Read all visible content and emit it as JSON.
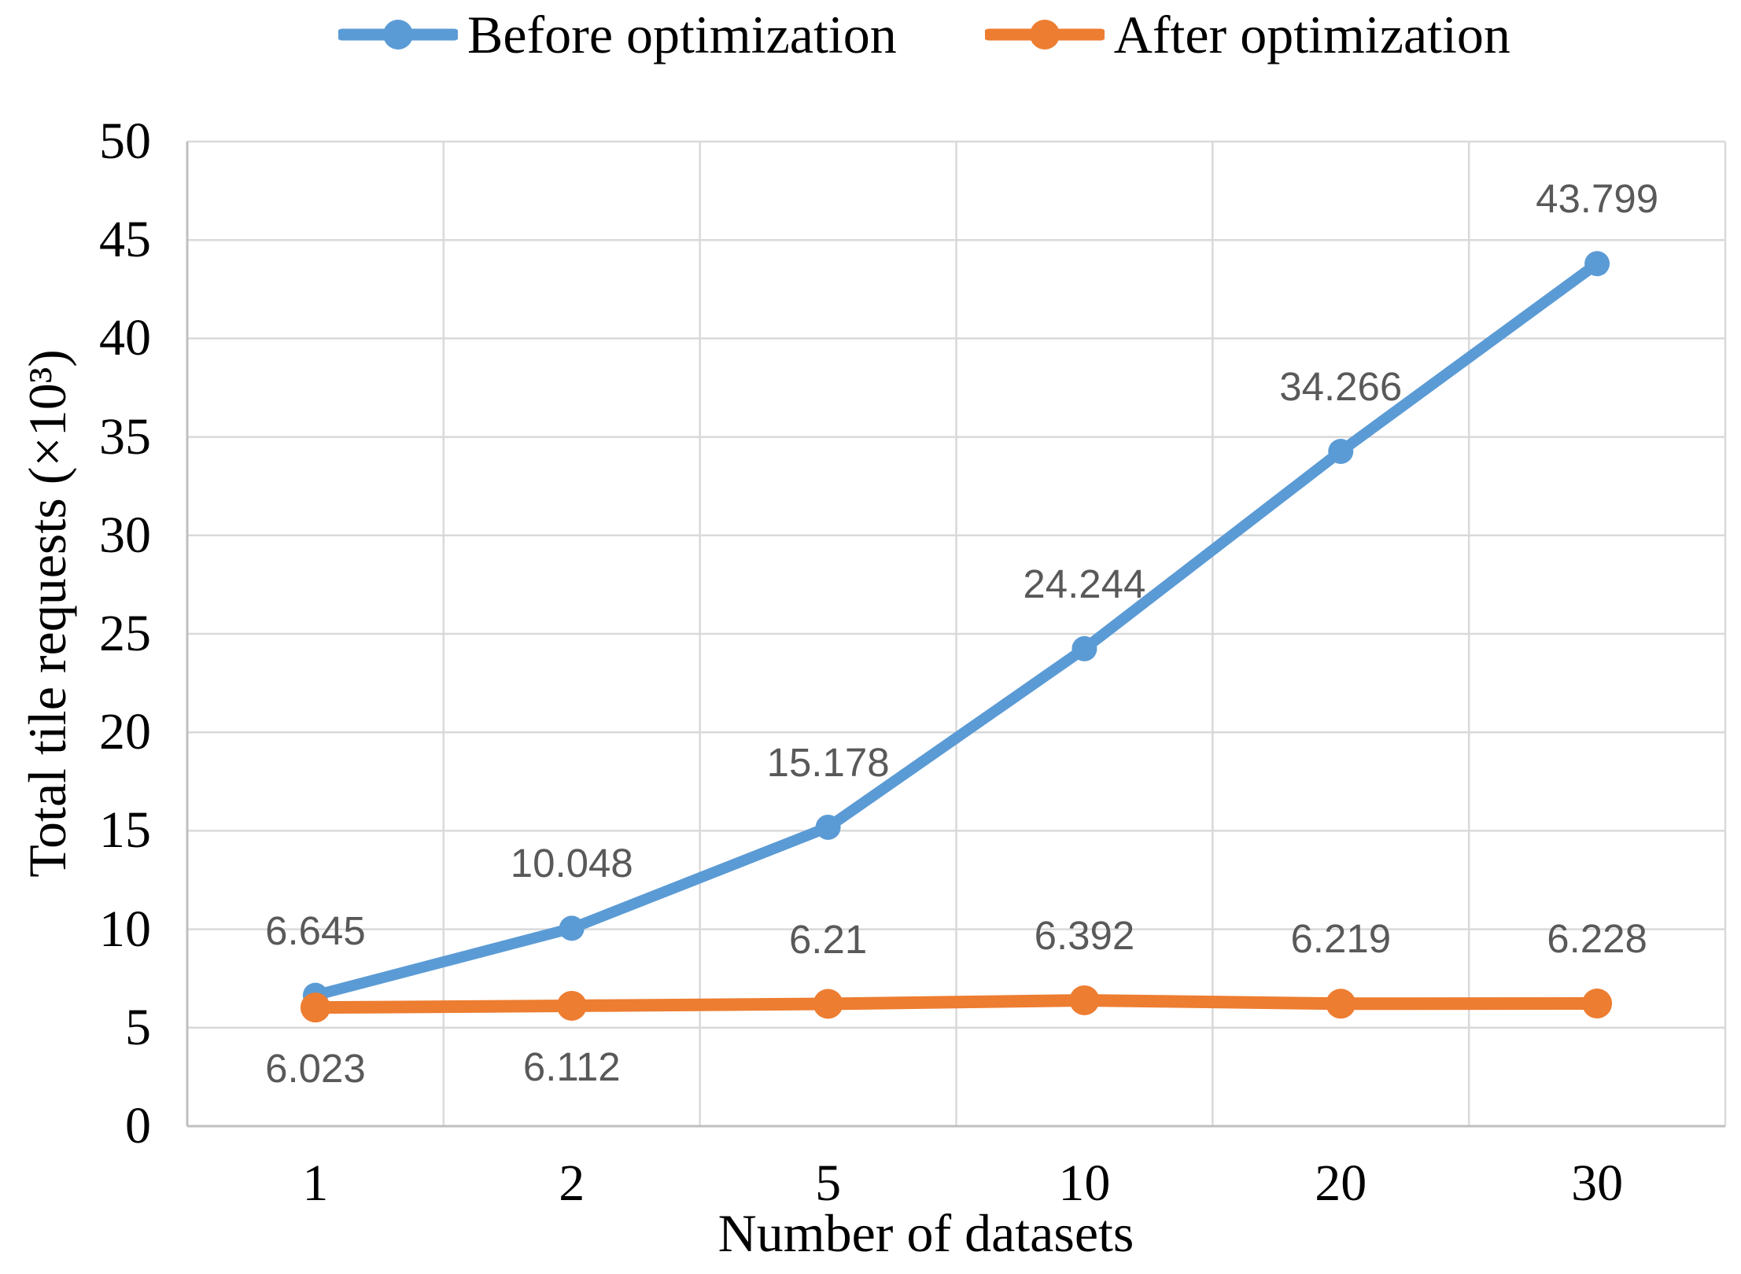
{
  "legend": {
    "position": "top"
  },
  "axes": {
    "y_title": "Total tile requests (×10³)",
    "x_title": "Number of datasets"
  },
  "chart_data": {
    "type": "line",
    "title": "",
    "xlabel": "Number of datasets",
    "ylabel": "Total tile requests (×10³)",
    "categories": [
      "1",
      "2",
      "5",
      "10",
      "20",
      "30"
    ],
    "ylim": [
      0,
      50
    ],
    "y_ticks": [
      0,
      5,
      10,
      15,
      20,
      25,
      30,
      35,
      40,
      45,
      50
    ],
    "grid": true,
    "legend_position": "top",
    "series": [
      {
        "name": "Before optimization",
        "color": "#5B9BD5",
        "marker": "circle",
        "values": [
          6.645,
          10.048,
          15.178,
          24.244,
          34.266,
          43.799
        ],
        "data_labels": [
          "6.645",
          "10.048",
          "15.178",
          "24.244",
          "34.266",
          "43.799"
        ],
        "label_positions": [
          "above",
          "above",
          "above",
          "above",
          "above",
          "above"
        ]
      },
      {
        "name": "After optimization",
        "color": "#ED7D31",
        "marker": "circle",
        "values": [
          6.023,
          6.112,
          6.21,
          6.392,
          6.219,
          6.228
        ],
        "data_labels": [
          "6.023",
          "6.112",
          "6.21",
          "6.392",
          "6.219",
          "6.228"
        ],
        "label_positions": [
          "below",
          "below",
          "above",
          "above",
          "above",
          "above"
        ]
      }
    ],
    "colors": {
      "grid": "#D9D9D9",
      "axis_line": "#BFBFBF",
      "data_label": "#595959",
      "text": "#000000"
    }
  }
}
